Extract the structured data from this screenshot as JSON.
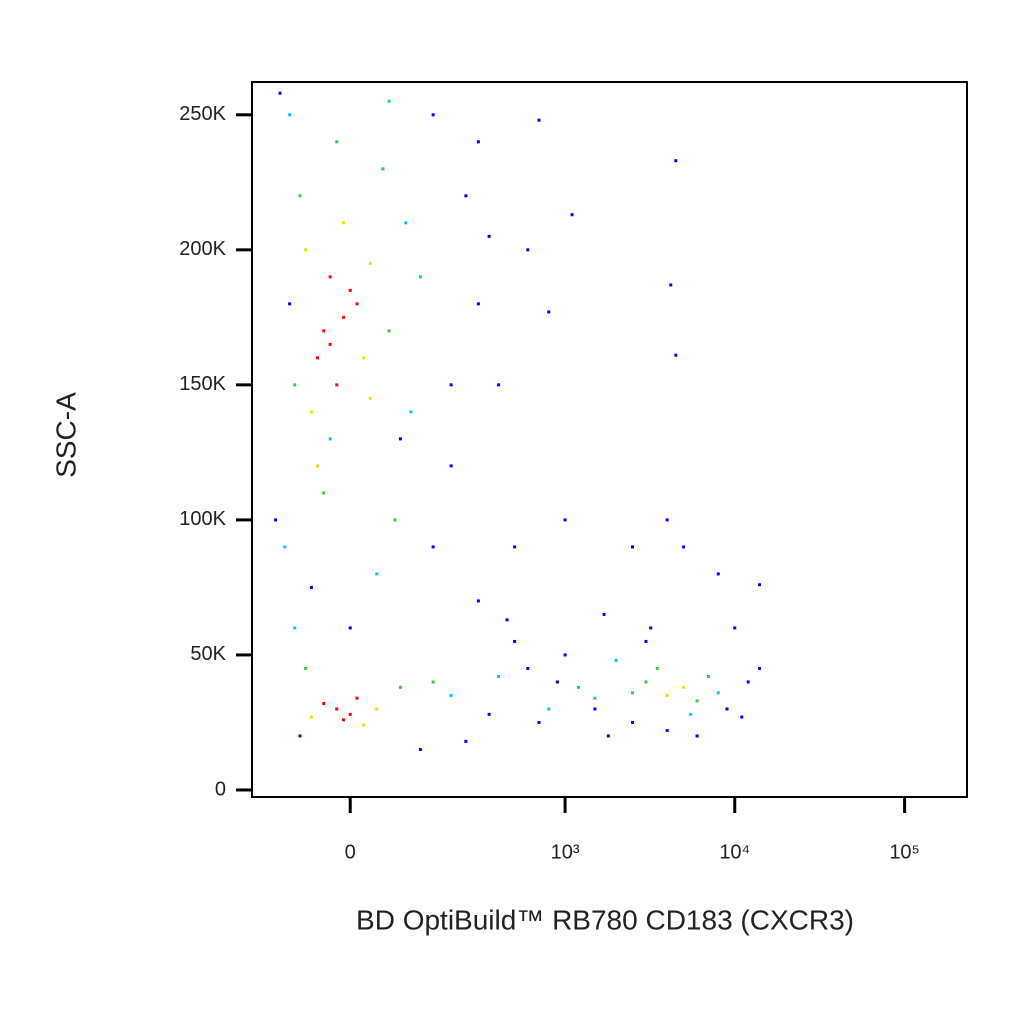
{
  "chart_data": {
    "type": "scatter",
    "x_label": "BD OptiBuild™ RB780 CD183 (CXCR3)",
    "y_label": "SSC-A",
    "xscale": "biexponential",
    "xlim": [
      -192,
      233000
    ],
    "xticks": [
      0,
      {
        "value": 1000,
        "label": "10³"
      },
      {
        "value": 10000,
        "label": "10⁴"
      },
      {
        "value": 100000,
        "label": "10⁵"
      }
    ],
    "ylim": [
      -2600,
      262144
    ],
    "yticks": [
      0,
      {
        "value": 50000,
        "label": "50K"
      },
      {
        "value": 100000,
        "label": "100K"
      },
      {
        "value": 150000,
        "label": "150K"
      },
      {
        "value": 200000,
        "label": "200K"
      },
      {
        "value": 250000,
        "label": "250K"
      }
    ],
    "series": [
      {
        "color": "#0000ff",
        "x": [
          -120,
          150,
          250,
          300,
          400,
          200,
          150,
          300,
          -130,
          -100,
          500,
          600,
          900,
          1500,
          2500,
          4000,
          9000,
          12000,
          14000,
          10000,
          3000,
          1000,
          700,
          350,
          250,
          120,
          -80,
          0,
          -60,
          80,
          700,
          1100,
          4500,
          4200,
          4500,
          1000,
          4000,
          2500,
          5000,
          8000,
          14000,
          500,
          600,
          300,
          800,
          1800,
          6000,
          11000,
          3200,
          1700,
          450,
          200,
          350
        ],
        "y": [
          258000,
          250000,
          220000,
          180000,
          150000,
          120000,
          90000,
          70000,
          100000,
          180000,
          55000,
          45000,
          40000,
          30000,
          25000,
          22000,
          30000,
          40000,
          45000,
          60000,
          55000,
          50000,
          25000,
          28000,
          18000,
          15000,
          20000,
          60000,
          75000,
          130000,
          248000,
          213000,
          233000,
          187000,
          161000,
          100000,
          100000,
          90000,
          90000,
          80000,
          76000,
          90000,
          200000,
          240000,
          177000,
          20000,
          20000,
          27000,
          60000,
          65000,
          63000,
          150000,
          205000
        ]
      },
      {
        "color": "#00c8ff",
        "x": [
          -100,
          90,
          100,
          -110,
          40,
          200,
          400,
          800,
          1200,
          2000,
          8000,
          5500,
          -90,
          120,
          -30,
          60
        ],
        "y": [
          250000,
          210000,
          140000,
          90000,
          80000,
          35000,
          42000,
          30000,
          38000,
          48000,
          36000,
          28000,
          60000,
          190000,
          130000,
          255000
        ]
      },
      {
        "color": "#30d040",
        "x": [
          -80,
          50,
          -90,
          60,
          -20,
          -40,
          80,
          150,
          3000,
          6000,
          2500,
          7000,
          3500,
          1500,
          -70,
          70
        ],
        "y": [
          220000,
          230000,
          150000,
          170000,
          240000,
          110000,
          38000,
          40000,
          40000,
          33000,
          36000,
          42000,
          45000,
          34000,
          45000,
          100000
        ]
      },
      {
        "color": "#f0e000",
        "x": [
          -60,
          20,
          -70,
          30,
          -10,
          40,
          -60,
          20,
          5000,
          4000,
          -50,
          30
        ],
        "y": [
          140000,
          160000,
          200000,
          195000,
          210000,
          30000,
          27000,
          24000,
          38000,
          35000,
          120000,
          145000
        ]
      },
      {
        "color": "#ff0000",
        "x": [
          -20,
          0,
          -40,
          10,
          -10,
          -30,
          -10,
          -50,
          0,
          -20,
          -40,
          10,
          -30
        ],
        "y": [
          30000,
          28000,
          32000,
          34000,
          26000,
          165000,
          175000,
          160000,
          185000,
          150000,
          170000,
          180000,
          190000
        ]
      }
    ]
  }
}
